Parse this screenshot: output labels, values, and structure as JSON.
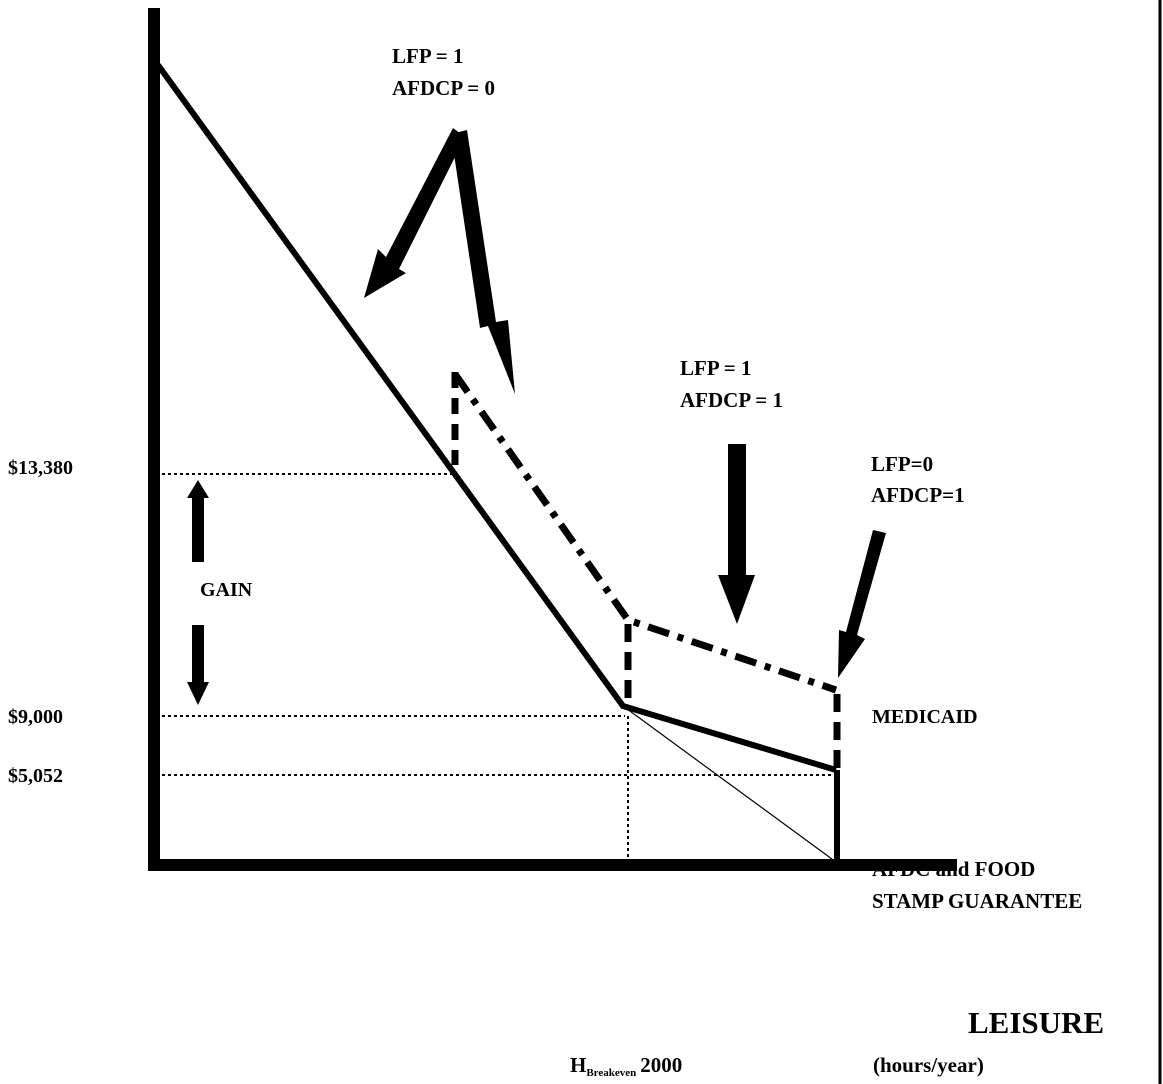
{
  "y_labels": {
    "v13380": "$13,380",
    "v9000": "$9,000",
    "v5052": "$5,052"
  },
  "annotations": {
    "region1_line1": "LFP = 1",
    "region1_line2": "AFDCP = 0",
    "region2_line1": "LFP = 1",
    "region2_line2": "AFDCP = 1",
    "region3_line1": "LFP=0",
    "region3_line2": "AFDCP=1",
    "gain": "GAIN",
    "medicaid": "MEDICAID",
    "guarantee_line1": "AFDC and FOOD",
    "guarantee_line2": "STAMP GUARANTEE"
  },
  "x_axis": {
    "label": "LEISURE",
    "unit": "(hours/year)",
    "h_main": "H",
    "h_sub": "Breakeven",
    "h_value": "2000"
  }
}
